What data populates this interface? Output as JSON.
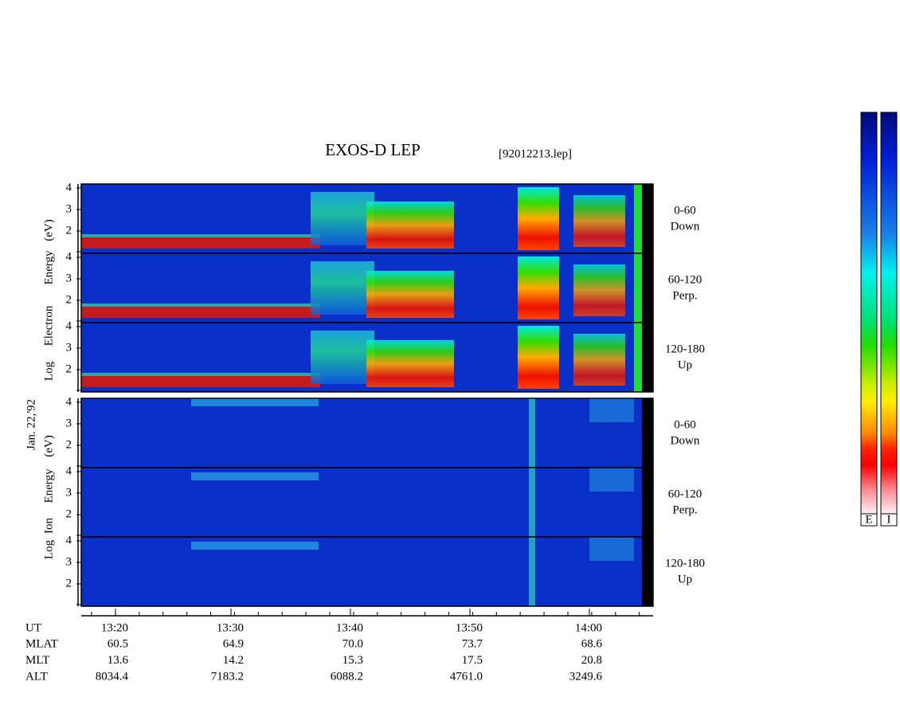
{
  "header": {
    "title": "EXOS-D LEP",
    "file": "[92012213.lep]",
    "date": "Jan. 22,'92"
  },
  "groups": [
    {
      "name": "electron",
      "axis_words": [
        "Log",
        "Electron",
        "Energy",
        "(eV)"
      ]
    },
    {
      "name": "ion",
      "axis_words": [
        "Log",
        "Ion",
        "Energy",
        "(eV)"
      ]
    }
  ],
  "yticks": [
    "4",
    "3",
    "2"
  ],
  "panels": [
    {
      "angle": "0-60",
      "direction": "Down"
    },
    {
      "angle": "60-120",
      "direction": "Perp."
    },
    {
      "angle": "120-180",
      "direction": "Up"
    }
  ],
  "orbit": [
    {
      "label": "UT",
      "values": [
        "13:20",
        "13:30",
        "13:40",
        "13:50",
        "14:00"
      ]
    },
    {
      "label": "MLAT",
      "values": [
        "60.5",
        "64.9",
        "70.0",
        "73.7",
        "68.6"
      ]
    },
    {
      "label": "MLT",
      "values": [
        "13.6",
        "14.2",
        "15.3",
        "17.5",
        "20.8"
      ]
    },
    {
      "label": "ALT",
      "values": [
        "8034.4",
        "7183.2",
        "6088.2",
        "4761.0",
        "3249.6"
      ]
    }
  ],
  "colorbars": [
    "E",
    "I"
  ]
}
